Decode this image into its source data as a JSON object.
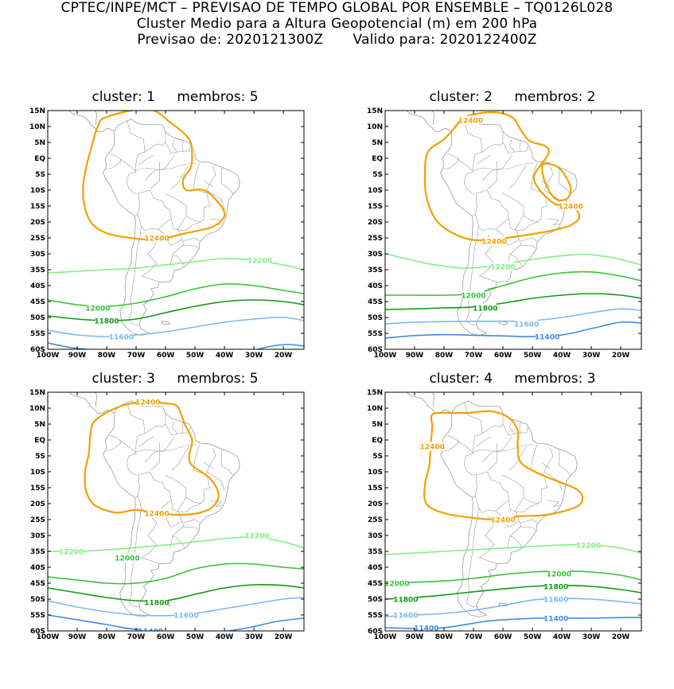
{
  "header": {
    "line1": "CPTEC/INPE/MCT – PREVISAO DE TEMPO GLOBAL POR ENSEMBLE – TQ0126L028",
    "line2": "Cluster Medio para a Altura Geopotencial (m) em 200 hPa",
    "line3_a": "Previsao de: 2020121300Z",
    "line3_b": "Valido para: 2020122400Z"
  },
  "axes": {
    "lat_labels": [
      "15N",
      "10N",
      "5N",
      "EQ",
      "5S",
      "10S",
      "15S",
      "20S",
      "25S",
      "30S",
      "35S",
      "40S",
      "45S",
      "50S",
      "55S",
      "60S"
    ],
    "lon_labels": [
      "100W",
      "90W",
      "80W",
      "70W",
      "60W",
      "50W",
      "40W",
      "30W",
      "20W"
    ]
  },
  "colors": {
    "12400": "#f5a000",
    "12200": "#7ef07e",
    "12000": "#35c335",
    "11800": "#0f9a0f",
    "11600": "#7ab8f5",
    "11400": "#3c8be0",
    "coast": "#9a9a9a"
  },
  "panels": [
    {
      "cluster_label": "cluster:",
      "cluster_num": "1",
      "membros_label": "membros:",
      "membros_num": "5",
      "contours": [
        {
          "level": "12400",
          "labels": [
            {
              "text": "12400",
              "lon": -63,
              "lat": -25
            }
          ]
        },
        {
          "level": "12200",
          "labels": [
            {
              "text": "12200",
              "lon": -28,
              "lat": -32
            }
          ]
        },
        {
          "level": "12000",
          "labels": [
            {
              "text": "12000",
              "lon": -83,
              "lat": -47
            }
          ]
        },
        {
          "level": "11800",
          "labels": [
            {
              "text": "11800",
              "lon": -80,
              "lat": -51
            }
          ]
        },
        {
          "level": "11600",
          "labels": [
            {
              "text": "11600",
              "lon": -75,
              "lat": -56
            }
          ]
        }
      ]
    },
    {
      "cluster_label": "cluster:",
      "cluster_num": "2",
      "membros_label": "membros:",
      "membros_num": "2",
      "contours": [
        {
          "level": "12400",
          "labels": [
            {
              "text": "12400",
              "lon": -71,
              "lat": 12
            },
            {
              "text": "12400",
              "lon": -37,
              "lat": -15
            },
            {
              "text": "12400",
              "lon": -63,
              "lat": -26
            }
          ]
        },
        {
          "level": "12200",
          "labels": [
            {
              "text": "12200",
              "lon": -60,
              "lat": -34
            }
          ]
        },
        {
          "level": "12000",
          "labels": [
            {
              "text": "12000",
              "lon": -70,
              "lat": -43
            }
          ]
        },
        {
          "level": "11800",
          "labels": [
            {
              "text": "11800",
              "lon": -66,
              "lat": -47
            }
          ]
        },
        {
          "level": "11600",
          "labels": [
            {
              "text": "11600",
              "lon": -52,
              "lat": -52
            }
          ]
        },
        {
          "level": "11400",
          "labels": [
            {
              "text": "11400",
              "lon": -45,
              "lat": -56
            }
          ]
        }
      ]
    },
    {
      "cluster_label": "cluster:",
      "cluster_num": "3",
      "membros_label": "membros:",
      "membros_num": "5",
      "contours": [
        {
          "level": "12400",
          "labels": [
            {
              "text": "12400",
              "lon": -66,
              "lat": 12
            },
            {
              "text": "12400",
              "lon": -63,
              "lat": -23
            }
          ]
        },
        {
          "level": "12200",
          "labels": [
            {
              "text": "12200",
              "lon": -92,
              "lat": -35
            },
            {
              "text": "12200",
              "lon": -29,
              "lat": -30
            }
          ]
        },
        {
          "level": "12000",
          "labels": [
            {
              "text": "12000",
              "lon": -73,
              "lat": -37
            }
          ]
        },
        {
          "level": "11800",
          "labels": [
            {
              "text": "11800",
              "lon": -63,
              "lat": -51
            }
          ]
        },
        {
          "level": "11600",
          "labels": [
            {
              "text": "11600",
              "lon": -53,
              "lat": -55
            }
          ]
        },
        {
          "level": "11400",
          "labels": [
            {
              "text": "11400",
              "lon": -65,
              "lat": -60
            }
          ]
        }
      ]
    },
    {
      "cluster_label": "cluster:",
      "cluster_num": "4",
      "membros_label": "membros:",
      "membros_num": "3",
      "contours": [
        {
          "level": "12400",
          "labels": [
            {
              "text": "12400",
              "lon": -84,
              "lat": -2
            },
            {
              "text": "12400",
              "lon": -60,
              "lat": -25
            }
          ]
        },
        {
          "level": "12200",
          "labels": [
            {
              "text": "12200",
              "lon": -31,
              "lat": -33
            }
          ]
        },
        {
          "level": "12000",
          "labels": [
            {
              "text": "12000",
              "lon": -96,
              "lat": -45
            },
            {
              "text": "12000",
              "lon": -41,
              "lat": -42
            }
          ]
        },
        {
          "level": "11800",
          "labels": [
            {
              "text": "11800",
              "lon": -93,
              "lat": -50
            },
            {
              "text": "11800",
              "lon": -42,
              "lat": -46
            }
          ]
        },
        {
          "level": "11600",
          "labels": [
            {
              "text": "11600",
              "lon": -93,
              "lat": -55
            },
            {
              "text": "11600",
              "lon": -42,
              "lat": -50
            }
          ]
        },
        {
          "level": "11400",
          "labels": [
            {
              "text": "11400",
              "lon": -86,
              "lat": -59
            },
            {
              "text": "11400",
              "lon": -42,
              "lat": -56
            }
          ]
        }
      ]
    }
  ]
}
